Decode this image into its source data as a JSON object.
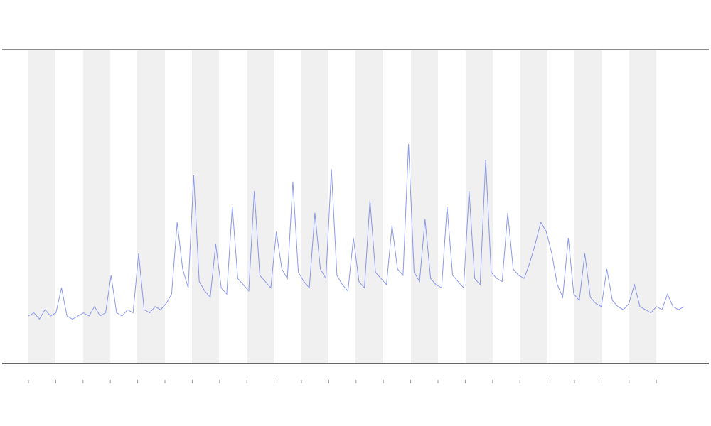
{
  "chart_data": {
    "type": "line",
    "color": "#6f7fe8",
    "ylim": [
      0,
      100
    ],
    "values": [
      15,
      16,
      14,
      17,
      15,
      16,
      24,
      15,
      14,
      15,
      16,
      15,
      18,
      15,
      16,
      28,
      16,
      15,
      17,
      16,
      35,
      17,
      16,
      18,
      17,
      19,
      22,
      45,
      30,
      24,
      60,
      26,
      23,
      21,
      38,
      24,
      22,
      50,
      27,
      25,
      23,
      55,
      28,
      26,
      24,
      42,
      30,
      27,
      58,
      29,
      26,
      24,
      48,
      30,
      27,
      62,
      28,
      25,
      23,
      40,
      26,
      24,
      52,
      29,
      27,
      25,
      44,
      30,
      28,
      70,
      29,
      26,
      46,
      27,
      25,
      24,
      50,
      28,
      26,
      24,
      55,
      27,
      25,
      65,
      29,
      27,
      26,
      48,
      30,
      28,
      27,
      32,
      38,
      45,
      42,
      35,
      25,
      21,
      40,
      22,
      20,
      35,
      21,
      19,
      18,
      30,
      20,
      18,
      17,
      19,
      25,
      18,
      17,
      16,
      18,
      17,
      22,
      18,
      17,
      18
    ]
  }
}
